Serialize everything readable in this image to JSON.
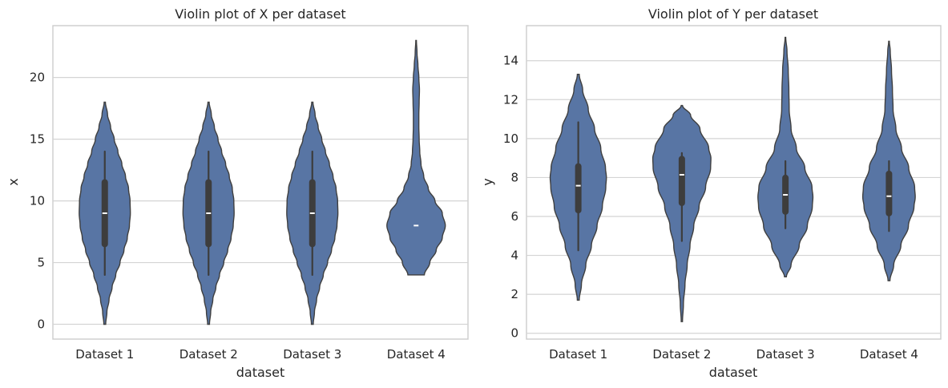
{
  "chart_data": [
    {
      "type": "violin",
      "title": "Violin plot of X per dataset",
      "xlabel": "dataset",
      "ylabel": "x",
      "categories": [
        "Dataset 1",
        "Dataset 2",
        "Dataset 3",
        "Dataset 4"
      ],
      "ylim": [
        -1.2,
        24.2
      ],
      "yticks": [
        0,
        5,
        10,
        15,
        20
      ],
      "grid": "y",
      "violins": [
        {
          "name": "Dataset 1",
          "min": 4,
          "q1": 6.5,
          "median": 9,
          "q3": 11.5,
          "max": 14,
          "kde_low": 0,
          "kde_high": 18,
          "density": [
            [
              0,
              0.03
            ],
            [
              1,
              0.07
            ],
            [
              2,
              0.14
            ],
            [
              3,
              0.24
            ],
            [
              4,
              0.36
            ],
            [
              5,
              0.5
            ],
            [
              6,
              0.63
            ],
            [
              7,
              0.74
            ],
            [
              8,
              0.81
            ],
            [
              9,
              0.84
            ],
            [
              10,
              0.83
            ],
            [
              11,
              0.78
            ],
            [
              12,
              0.68
            ],
            [
              13,
              0.56
            ],
            [
              14,
              0.43
            ],
            [
              15,
              0.31
            ],
            [
              16,
              0.19
            ],
            [
              17,
              0.09
            ],
            [
              18,
              0.02
            ]
          ]
        },
        {
          "name": "Dataset 2",
          "min": 4,
          "q1": 6.5,
          "median": 9,
          "q3": 11.5,
          "max": 14,
          "kde_low": 0,
          "kde_high": 18,
          "density": [
            [
              0,
              0.03
            ],
            [
              1,
              0.07
            ],
            [
              2,
              0.14
            ],
            [
              3,
              0.24
            ],
            [
              4,
              0.36
            ],
            [
              5,
              0.5
            ],
            [
              6,
              0.63
            ],
            [
              7,
              0.74
            ],
            [
              8,
              0.81
            ],
            [
              9,
              0.84
            ],
            [
              10,
              0.83
            ],
            [
              11,
              0.78
            ],
            [
              12,
              0.68
            ],
            [
              13,
              0.56
            ],
            [
              14,
              0.43
            ],
            [
              15,
              0.31
            ],
            [
              16,
              0.19
            ],
            [
              17,
              0.09
            ],
            [
              18,
              0.02
            ]
          ]
        },
        {
          "name": "Dataset 3",
          "min": 4,
          "q1": 6.5,
          "median": 9,
          "q3": 11.5,
          "max": 14,
          "kde_low": 0,
          "kde_high": 18,
          "density": [
            [
              0,
              0.03
            ],
            [
              1,
              0.07
            ],
            [
              2,
              0.14
            ],
            [
              3,
              0.24
            ],
            [
              4,
              0.36
            ],
            [
              5,
              0.5
            ],
            [
              6,
              0.63
            ],
            [
              7,
              0.74
            ],
            [
              8,
              0.81
            ],
            [
              9,
              0.84
            ],
            [
              10,
              0.83
            ],
            [
              11,
              0.78
            ],
            [
              12,
              0.68
            ],
            [
              13,
              0.56
            ],
            [
              14,
              0.43
            ],
            [
              15,
              0.31
            ],
            [
              16,
              0.19
            ],
            [
              17,
              0.09
            ],
            [
              18,
              0.02
            ]
          ]
        },
        {
          "name": "Dataset 4",
          "min": 8,
          "q1": 8,
          "median": 8,
          "q3": 8,
          "max": 8,
          "kde_low": 4,
          "kde_high": 23,
          "density": [
            [
              4,
              0.27
            ],
            [
              5,
              0.45
            ],
            [
              6,
              0.66
            ],
            [
              7,
              0.86
            ],
            [
              8,
              0.96
            ],
            [
              9,
              0.86
            ],
            [
              10,
              0.62
            ],
            [
              11,
              0.4
            ],
            [
              12,
              0.25
            ],
            [
              13,
              0.16
            ],
            [
              14,
              0.12
            ],
            [
              15,
              0.1
            ],
            [
              16,
              0.09
            ],
            [
              17,
              0.09
            ],
            [
              18,
              0.1
            ],
            [
              19,
              0.11
            ],
            [
              20,
              0.09
            ],
            [
              21,
              0.06
            ],
            [
              22,
              0.03
            ],
            [
              23,
              0.01
            ]
          ]
        }
      ]
    },
    {
      "type": "violin",
      "title": "Violin plot of Y per dataset",
      "xlabel": "dataset",
      "ylabel": "y",
      "categories": [
        "Dataset 1",
        "Dataset 2",
        "Dataset 3",
        "Dataset 4"
      ],
      "ylim": [
        -0.3,
        15.8
      ],
      "yticks": [
        0,
        2,
        4,
        6,
        8,
        10,
        12,
        14
      ],
      "grid": "y",
      "violins": [
        {
          "name": "Dataset 1",
          "min": 4.26,
          "q1": 6.32,
          "median": 7.58,
          "q3": 8.57,
          "max": 10.84,
          "kde_low": 1.7,
          "kde_high": 13.3,
          "density": [
            [
              1.7,
              0.03
            ],
            [
              2.5,
              0.1
            ],
            [
              3.5,
              0.24
            ],
            [
              4.5,
              0.42
            ],
            [
              5.5,
              0.6
            ],
            [
              6.5,
              0.77
            ],
            [
              7.5,
              0.88
            ],
            [
              8.0,
              0.9
            ],
            [
              8.5,
              0.87
            ],
            [
              9.5,
              0.72
            ],
            [
              10.5,
              0.52
            ],
            [
              11.5,
              0.32
            ],
            [
              12.5,
              0.14
            ],
            [
              13.3,
              0.03
            ]
          ]
        },
        {
          "name": "Dataset 2",
          "min": 4.74,
          "q1": 6.7,
          "median": 8.14,
          "q3": 8.95,
          "max": 9.26,
          "kde_low": 0.6,
          "kde_high": 11.7,
          "density": [
            [
              0.6,
              0.02
            ],
            [
              1.5,
              0.05
            ],
            [
              2.5,
              0.1
            ],
            [
              3.5,
              0.17
            ],
            [
              4.5,
              0.26
            ],
            [
              5.5,
              0.38
            ],
            [
              6.5,
              0.55
            ],
            [
              7.5,
              0.76
            ],
            [
              8.5,
              0.92
            ],
            [
              9.0,
              0.93
            ],
            [
              9.5,
              0.86
            ],
            [
              10.5,
              0.58
            ],
            [
              11.2,
              0.28
            ],
            [
              11.7,
              0.02
            ]
          ]
        },
        {
          "name": "Dataset 3",
          "min": 5.39,
          "q1": 6.25,
          "median": 7.11,
          "q3": 7.98,
          "max": 8.84,
          "kde_low": 2.9,
          "kde_high": 15.2,
          "density": [
            [
              2.9,
              0.03
            ],
            [
              3.5,
              0.18
            ],
            [
              4.5,
              0.44
            ],
            [
              5.5,
              0.7
            ],
            [
              6.5,
              0.86
            ],
            [
              7.0,
              0.88
            ],
            [
              7.5,
              0.85
            ],
            [
              8.5,
              0.62
            ],
            [
              9.5,
              0.35
            ],
            [
              10.5,
              0.18
            ],
            [
              11.5,
              0.12
            ],
            [
              12.5,
              0.11
            ],
            [
              13.5,
              0.09
            ],
            [
              14.5,
              0.05
            ],
            [
              15.2,
              0.01
            ]
          ]
        },
        {
          "name": "Dataset 4",
          "min": 5.25,
          "q1": 6.17,
          "median": 7.04,
          "q3": 8.19,
          "max": 8.84,
          "kde_low": 2.7,
          "kde_high": 15.0,
          "density": [
            [
              2.7,
              0.03
            ],
            [
              3.5,
              0.15
            ],
            [
              4.5,
              0.38
            ],
            [
              5.5,
              0.62
            ],
            [
              6.5,
              0.8
            ],
            [
              7.0,
              0.84
            ],
            [
              7.5,
              0.82
            ],
            [
              8.5,
              0.63
            ],
            [
              9.5,
              0.4
            ],
            [
              10.5,
              0.22
            ],
            [
              11.5,
              0.13
            ],
            [
              12.5,
              0.11
            ],
            [
              13.5,
              0.08
            ],
            [
              14.5,
              0.04
            ],
            [
              15.0,
              0.01
            ]
          ]
        }
      ]
    }
  ]
}
